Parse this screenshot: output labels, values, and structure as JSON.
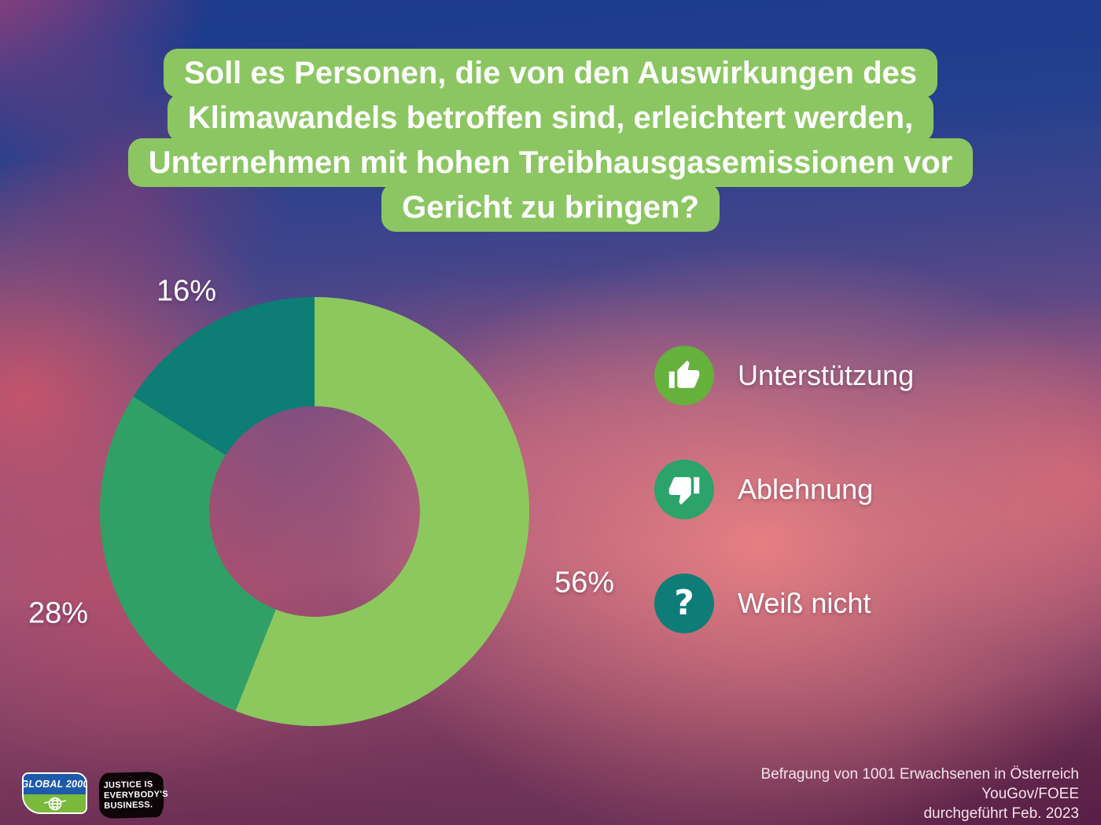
{
  "title": {
    "lines": [
      "Soll es Personen, die von den Auswirkungen des",
      "Klimawandels betroffen sind, erleichtert werden,",
      "Unternehmen mit hohen Treibhausgasemissionen vor",
      "Gericht zu bringen?"
    ],
    "box_color": "#8cc662",
    "text_color": "#ffffff"
  },
  "chart_data": {
    "type": "pie",
    "subtype": "donut",
    "title": "Soll es Personen, die von den Auswirkungen des Klimawandels betroffen sind, erleichtert werden, Unternehmen mit hohen Treibhausgasemissionen vor Gericht zu bringen?",
    "categories": [
      "Unterstützung",
      "Ablehnung",
      "Weiß nicht"
    ],
    "values": [
      56,
      28,
      16
    ],
    "unit": "%",
    "labels": [
      "56%",
      "28%",
      "16%"
    ],
    "colors": [
      "#8cc85e",
      "#31a066",
      "#0d7d75"
    ],
    "start_angle_deg": 0,
    "direction": "clockwise",
    "inner_radius_ratio": 0.49,
    "legend_position": "right"
  },
  "legend": {
    "items": [
      {
        "label": "Unterstützung",
        "icon": "thumbs-up-icon",
        "color": "#66b03c"
      },
      {
        "label": "Ablehnung",
        "icon": "thumbs-down-icon",
        "color": "#2ba36a"
      },
      {
        "label": "Weiß nicht",
        "icon": "question-mark-icon",
        "glyph": "?",
        "color": "#0e7d78"
      }
    ]
  },
  "footer": {
    "global2000_logo": {
      "text": "GLOBAL 2000",
      "blue": "#1e5aaa",
      "green": "#7ab93c"
    },
    "justice_logo": {
      "lines": [
        "JUSTICE IS",
        "EVERYBODY'S",
        "BUSINESS."
      ]
    },
    "source_lines": [
      "Befragung von 1001 Erwachsenen in Österreich",
      "YouGov/FOEE",
      "durchgeführt Feb. 2023"
    ]
  }
}
